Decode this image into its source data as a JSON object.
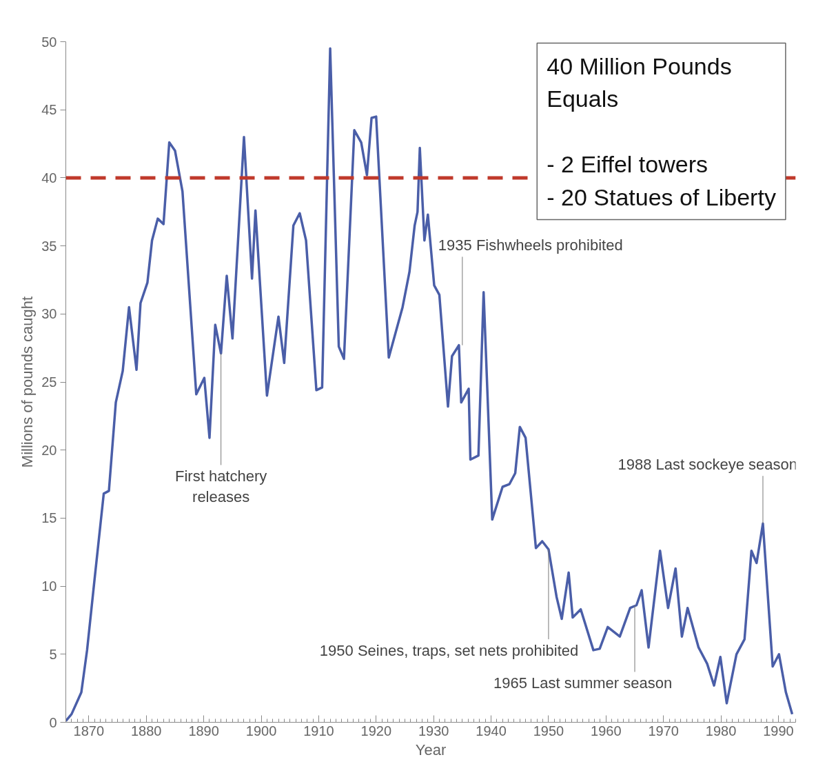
{
  "chart_data": {
    "type": "line",
    "xlabel": "Year",
    "ylabel": "Millions of pounds caught",
    "x": [
      1866,
      1867,
      1868.7,
      1869.7,
      1871,
      1872.6,
      1873.5,
      1874.7,
      1875.9,
      1877,
      1878.3,
      1879,
      1880.2,
      1881,
      1882,
      1883,
      1884,
      1885,
      1886.3,
      1888.7,
      1890.1,
      1891,
      1892,
      1893,
      1894,
      1895,
      1897,
      1898.4,
      1899,
      1901,
      1903,
      1904,
      1905.6,
      1906.7,
      1907.8,
      1909.6,
      1910.6,
      1912,
      1913.5,
      1914.4,
      1916.2,
      1917.4,
      1918.4,
      1919.2,
      1920,
      1922.2,
      1924.6,
      1925.8,
      1926.7,
      1927.2,
      1927.6,
      1928.4,
      1929,
      1930.1,
      1931,
      1932.5,
      1933.2,
      1934.4,
      1934.8,
      1936.1,
      1936.4,
      1937.8,
      1938.7,
      1940.2,
      1942,
      1943.2,
      1944.2,
      1945,
      1946,
      1947.8,
      1948.9,
      1950,
      1951.4,
      1952.3,
      1953.5,
      1954.2,
      1955.6,
      1957.8,
      1958.9,
      1960.3,
      1962.4,
      1964.2,
      1965.3,
      1966.2,
      1967.4,
      1969.4,
      1970.8,
      1972.1,
      1973.2,
      1974.2,
      1976.1,
      1977.6,
      1978.8,
      1979.9,
      1981,
      1982.7,
      1984.1,
      1985.3,
      1986.2,
      1987.3,
      1989,
      1990.1,
      1991.3,
      1992.4
    ],
    "series": [
      {
        "color": "#4a5ea8",
        "values": [
          0.1,
          0.6,
          2.2,
          5.3,
          10.5,
          16.8,
          17,
          23.5,
          25.8,
          30.5,
          25.9,
          30.8,
          32.3,
          35.4,
          37,
          36.6,
          42.6,
          42,
          39,
          24.1,
          25.3,
          20.9,
          29.2,
          27.1,
          32.8,
          28.2,
          43,
          32.6,
          37.6,
          24,
          29.8,
          26.4,
          36.5,
          37.4,
          35.4,
          24.4,
          24.6,
          49.5,
          27.6,
          26.7,
          43.5,
          42.6,
          40.2,
          44.4,
          44.5,
          26.8,
          30.5,
          33.1,
          36.5,
          37.5,
          42.2,
          35.4,
          37.3,
          32.1,
          31.4,
          23.2,
          26.9,
          27.7,
          23.5,
          24.5,
          19.3,
          19.6,
          31.6,
          14.9,
          17.3,
          17.5,
          18.3,
          21.7,
          20.9,
          12.8,
          13.3,
          12.7,
          9.2,
          7.6,
          11,
          7.7,
          8.3,
          5.3,
          5.4,
          7,
          6.3,
          8.4,
          8.6,
          9.7,
          5.5,
          12.6,
          8.4,
          11.3,
          6.3,
          8.4,
          5.5,
          4.3,
          2.7,
          4.8,
          1.4,
          5,
          6.1,
          12.6,
          11.7,
          14.6,
          4.1,
          5,
          2.2,
          0.6
        ]
      }
    ],
    "xlim": [
      1866,
      1993
    ],
    "ylim": [
      0,
      50
    ],
    "xticks": [
      1870,
      1880,
      1890,
      1900,
      1910,
      1920,
      1930,
      1940,
      1950,
      1960,
      1970,
      1980,
      1990
    ],
    "yticks": [
      0,
      5,
      10,
      15,
      20,
      25,
      30,
      35,
      40,
      45,
      50
    ],
    "ref_lines": [
      {
        "axis": "y",
        "value": 40,
        "color": "#c0392b",
        "line_style": "dashed"
      }
    ],
    "annotations": [
      {
        "text": "First hatchery\nreleases",
        "x": 1893,
        "y": 27.1
      },
      {
        "text": "1935 Fishwheels prohibited",
        "x": 1935,
        "y": 27.7
      },
      {
        "text": "1950 Seines, traps, set nets prohibited",
        "x": 1950,
        "y": 12.7
      },
      {
        "text": "1965 Last summer season",
        "x": 1965,
        "y": 8.6
      },
      {
        "text": "1988 Last sockeye season",
        "x": 1987.3,
        "y": 14.6
      },
      "40 Million Pounds\nEquals",
      "- 2 Eiffel towers",
      "- 20 Statues of Liberty"
    ],
    "grid": false,
    "marker": "none",
    "line_style": "solid"
  }
}
